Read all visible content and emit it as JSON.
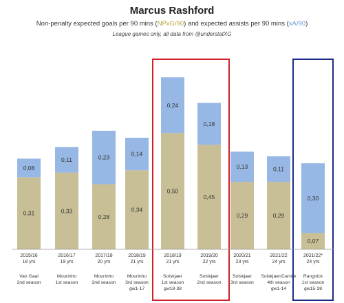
{
  "chart_data": {
    "type": "bar",
    "stacked": true,
    "title": "Marcus Rashford",
    "subtitle": {
      "before": "Non-penalty expected goals per 90 mins (",
      "npxg_term": "NPxG/90",
      "middle": ") and expected assists per 90 mins (",
      "xa_term": "xA/90",
      "after": ")"
    },
    "note": "League games only, all data from @understatXG",
    "ylim": [
      0,
      0.8
    ],
    "colors": {
      "npxg": "#c8bf96",
      "xa": "#97b7e4",
      "npxg_text": "#b7a640",
      "xa_text": "#6b98d8",
      "highlight_red": "#d4202a",
      "highlight_blue": "#1c2a8a"
    },
    "categories": [
      {
        "season": "2015/16",
        "age": "18 yrs",
        "manager": [
          "Van Gaal",
          "2nd season"
        ]
      },
      {
        "season": "2016/17",
        "age": "19 yrs",
        "manager": [
          "Mourinho",
          "1st season"
        ]
      },
      {
        "season": "2017/18",
        "age": "20 yrs",
        "manager": [
          "Mourinho",
          "2nd season"
        ]
      },
      {
        "season": "2018/19",
        "age": "21 yrs",
        "manager": [
          "Mourinho",
          "3rd season",
          "gw1-17"
        ]
      },
      {
        "season": "2018/19",
        "age": "21 yrs",
        "manager": [
          "Solskjaer",
          "1st season",
          "gw18-38"
        ]
      },
      {
        "season": "2019/20",
        "age": "22 yrs",
        "manager": [
          "Solskjaer",
          "2nd season"
        ]
      },
      {
        "season": "2020/21",
        "age": "23 yrs",
        "manager": [
          "Solskjaer",
          "3rd season"
        ]
      },
      {
        "season": "2021/22",
        "age": "24 yrs",
        "manager": [
          "Solskjaer/Carrick",
          "4th season",
          "gw1-14"
        ]
      },
      {
        "season": "2021/22*",
        "age": "24 yrs",
        "manager": [
          "Rangnick",
          "1st season",
          "gw15-38"
        ]
      }
    ],
    "series": [
      {
        "key": "npxg",
        "values": [
          0.31,
          0.33,
          0.28,
          0.34,
          0.5,
          0.45,
          0.29,
          0.29,
          0.07
        ],
        "labels": [
          "0,31",
          "0,33",
          "0,28",
          "0,34",
          "0,50",
          "0,45",
          "0,29",
          "0,29",
          "0,07"
        ]
      },
      {
        "key": "xa",
        "values": [
          0.08,
          0.11,
          0.23,
          0.14,
          0.24,
          0.18,
          0.13,
          0.11,
          0.3
        ],
        "labels": [
          "0,08",
          "0,11",
          "0,23",
          "0,14",
          "0,24",
          "0,18",
          "0,13",
          "0,11",
          "0,30"
        ]
      }
    ],
    "highlight_groups": [
      {
        "indices": [
          4,
          5
        ],
        "color": "red"
      },
      {
        "indices": [
          8
        ],
        "color": "blue"
      }
    ]
  }
}
